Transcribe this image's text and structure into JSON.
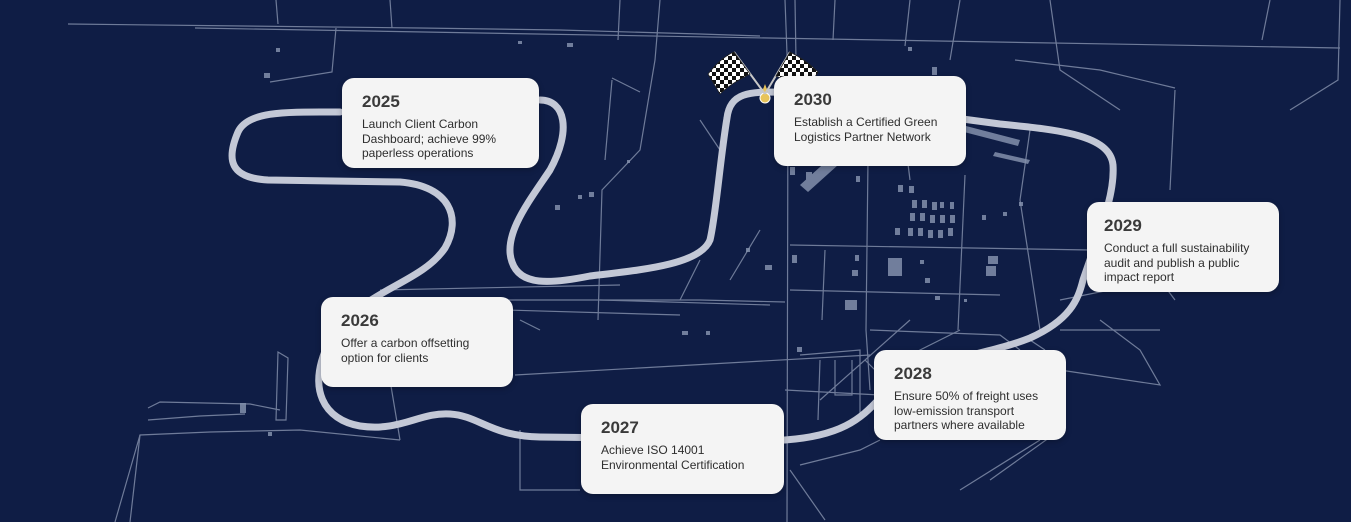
{
  "milestones": [
    {
      "year": "2025",
      "text": "Launch Client Carbon Dashboard; achieve 99% paperless operations"
    },
    {
      "year": "2026",
      "text": "Offer a carbon offsetting option for clients"
    },
    {
      "year": "2027",
      "text": "Achieve ISO 14001 Environmental Certification"
    },
    {
      "year": "2028",
      "text": "Ensure 50% of freight uses low-emission transport partners where available"
    },
    {
      "year": "2029",
      "text": "Conduct a full sustainability audit and publish a public impact report"
    },
    {
      "year": "2030",
      "text": "Establish a Certified Green Logistics Partner Network"
    }
  ],
  "colors": {
    "background": "#0f1d45",
    "road": "#9aa6bd",
    "track": "#c3c8d6",
    "card": "#f4f4f4",
    "pin": "#e8c45a"
  },
  "icons": [
    "checkered-flag-icon",
    "finish-pin-icon"
  ]
}
